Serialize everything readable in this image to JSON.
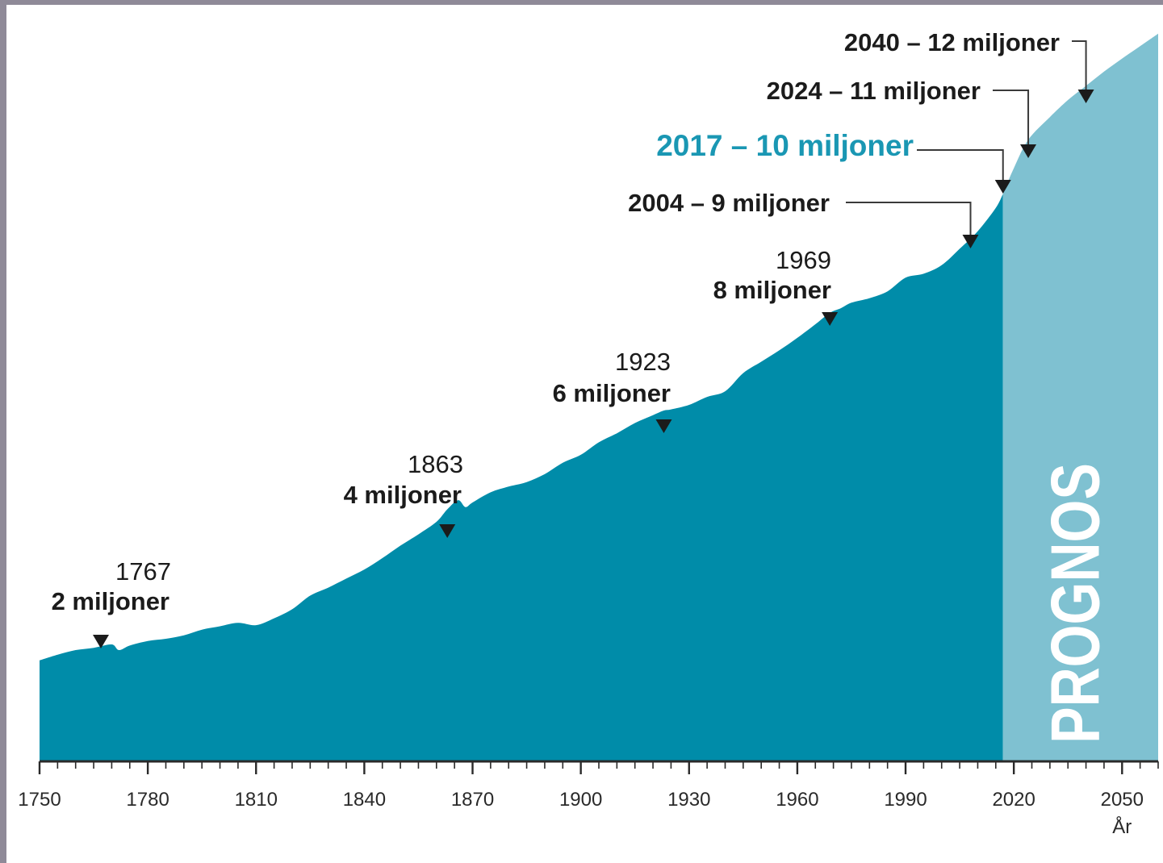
{
  "chart_data": {
    "type": "area",
    "x_unit_label": "År",
    "xlim": [
      1750,
      2060
    ],
    "ylim": [
      0,
      13
    ],
    "x_ticks": [
      1750,
      1780,
      1810,
      1840,
      1870,
      1900,
      1930,
      1960,
      1990,
      2020,
      2050
    ],
    "series": [
      {
        "x": [
          1750,
          1755,
          1760,
          1765,
          1770,
          1772,
          1775,
          1780,
          1785,
          1790,
          1795,
          1800,
          1805,
          1810,
          1815,
          1820,
          1825,
          1830,
          1835,
          1840,
          1845,
          1850,
          1855,
          1860,
          1863,
          1866,
          1868,
          1870,
          1875,
          1880,
          1885,
          1890,
          1895,
          1900,
          1905,
          1910,
          1915,
          1920,
          1923,
          1925,
          1930,
          1935,
          1940,
          1945,
          1950,
          1955,
          1960,
          1965,
          1969,
          1972,
          1975,
          1980,
          1985,
          1990,
          1995,
          2000,
          2005,
          2010,
          2015,
          2017
        ],
        "y": [
          1.78,
          1.88,
          1.96,
          2.0,
          2.06,
          1.96,
          2.04,
          2.12,
          2.16,
          2.22,
          2.32,
          2.38,
          2.44,
          2.4,
          2.52,
          2.68,
          2.92,
          3.06,
          3.22,
          3.38,
          3.58,
          3.8,
          4.0,
          4.22,
          4.44,
          4.6,
          4.48,
          4.56,
          4.74,
          4.84,
          4.92,
          5.06,
          5.26,
          5.4,
          5.62,
          5.78,
          5.96,
          6.1,
          6.18,
          6.2,
          6.28,
          6.42,
          6.52,
          6.84,
          7.04,
          7.24,
          7.46,
          7.7,
          7.9,
          7.98,
          8.08,
          8.16,
          8.28,
          8.52,
          8.59,
          8.74,
          9.03,
          9.34,
          9.75,
          10.0
        ]
      },
      {
        "x": [
          2017,
          2020,
          2024,
          2030,
          2035,
          2040,
          2045,
          2050,
          2055,
          2060
        ],
        "y": [
          10.0,
          10.45,
          10.95,
          11.35,
          11.65,
          11.9,
          12.15,
          12.38,
          12.6,
          12.82
        ]
      }
    ],
    "prognos_label": "PROGNOS",
    "annotations": [
      {
        "year": "1767",
        "text": "2 miljoner",
        "x": 1767
      },
      {
        "year": "1863",
        "text": "4 miljoner",
        "x": 1863
      },
      {
        "year": "1923",
        "text": "6 miljoner",
        "x": 1923
      },
      {
        "year": "1969",
        "text": "8 miljoner",
        "x": 1969
      }
    ],
    "callouts": [
      {
        "text": "2004 – 9 miljoner",
        "x": 2008,
        "y": 9.3
      },
      {
        "text": "2017 – 10 miljoner",
        "x": 2017,
        "y": 10.0,
        "highlight": true
      },
      {
        "text": "2024 – 11 miljoner",
        "x": 2024,
        "y": 11.0
      },
      {
        "text": "2040 – 12 miljoner",
        "x": 2040,
        "y": 12.0
      }
    ],
    "colors": {
      "historical": "#008ca9",
      "forecast": "#7fc1d1",
      "highlight_text": "#1a97b3",
      "text": "#1b1b1b",
      "background_border": "#8f8a98"
    }
  }
}
